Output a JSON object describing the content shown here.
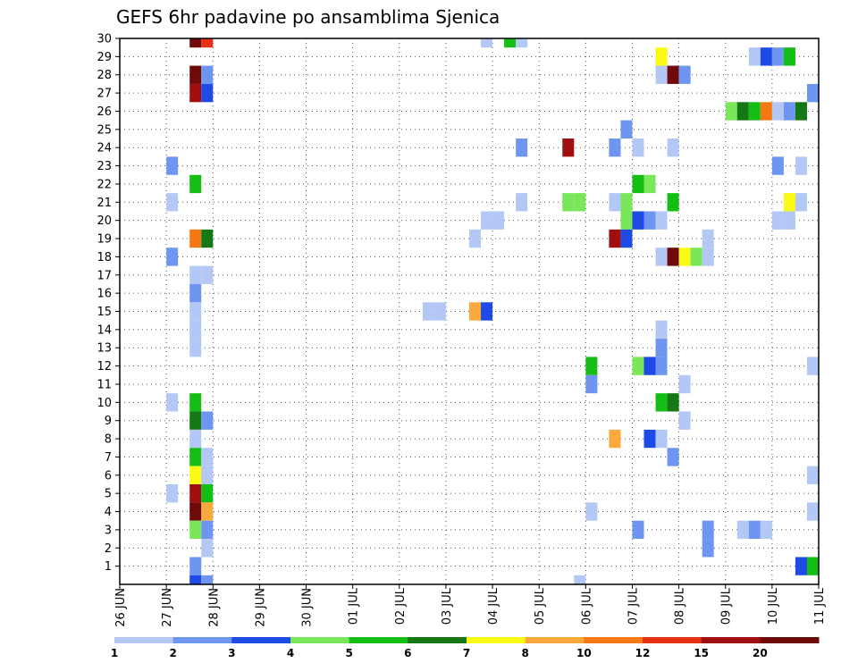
{
  "chart_data": {
    "type": "heatmap",
    "title": "GEFS 6hr padavine po ansamblima Sjenica",
    "y_ticks": [
      "30",
      "29",
      "28",
      "27",
      "26",
      "25",
      "24",
      "23",
      "22",
      "21",
      "20",
      "19",
      "18",
      "17",
      "16",
      "15",
      "14",
      "13",
      "12",
      "11",
      "10",
      "9",
      "8",
      "7",
      "6",
      "5",
      "4",
      "3",
      "2",
      "1"
    ],
    "y_range": [
      0,
      30
    ],
    "x_ticks": [
      "26 JUN",
      "27 JUN",
      "28 JUN",
      "29 JUN",
      "30 JUN",
      "01 JUL",
      "02 JUL",
      "03 JUL",
      "04 JUL",
      "05 JUL",
      "06 JUL",
      "07 JUL",
      "08 JUL",
      "09 JUL",
      "10 JUL",
      "11 JUL"
    ],
    "x_range_days": [
      0,
      15
    ],
    "grid": true,
    "levels": [
      "1",
      "2",
      "3",
      "4",
      "5",
      "6",
      "7",
      "8",
      "10",
      "12",
      "15",
      "20"
    ],
    "colors": [
      "#b4c8f5",
      "#6e96f0",
      "#1e4be6",
      "#7ae65a",
      "#14be14",
      "#147814",
      "#fafa14",
      "#faaa3c",
      "#f57814",
      "#e63214",
      "#a00f0f",
      "#6e0a0a"
    ],
    "cells": [
      [
        1.5,
        30,
        11
      ],
      [
        1.75,
        30,
        9
      ],
      [
        7.75,
        30,
        0
      ],
      [
        8.25,
        30,
        4
      ],
      [
        8.5,
        30,
        0
      ],
      [
        11.5,
        29,
        6
      ],
      [
        13.5,
        29,
        0
      ],
      [
        13.75,
        29,
        2
      ],
      [
        14.0,
        29,
        1
      ],
      [
        14.25,
        29,
        4
      ],
      [
        1.5,
        28,
        11
      ],
      [
        1.75,
        28,
        1
      ],
      [
        11.5,
        28,
        0
      ],
      [
        11.75,
        28,
        11
      ],
      [
        12.0,
        28,
        1
      ],
      [
        1.5,
        27,
        10
      ],
      [
        1.75,
        27,
        2
      ],
      [
        14.75,
        27,
        1
      ],
      [
        13.0,
        26,
        3
      ],
      [
        13.25,
        26,
        5
      ],
      [
        13.5,
        26,
        4
      ],
      [
        13.75,
        26,
        8
      ],
      [
        14.0,
        26,
        0
      ],
      [
        14.25,
        26,
        1
      ],
      [
        14.5,
        26,
        5
      ],
      [
        10.75,
        25,
        1
      ],
      [
        8.5,
        24,
        1
      ],
      [
        9.5,
        24,
        10
      ],
      [
        10.5,
        24,
        1
      ],
      [
        11.0,
        24,
        0
      ],
      [
        11.75,
        24,
        0
      ],
      [
        1.0,
        23,
        1
      ],
      [
        14.0,
        23,
        1
      ],
      [
        14.5,
        23,
        0
      ],
      [
        1.5,
        22,
        4
      ],
      [
        11.0,
        22,
        4
      ],
      [
        11.25,
        22,
        3
      ],
      [
        1.0,
        21,
        0
      ],
      [
        8.5,
        21,
        0
      ],
      [
        9.5,
        21,
        3
      ],
      [
        9.75,
        21,
        3
      ],
      [
        10.5,
        21,
        0
      ],
      [
        10.75,
        21,
        3
      ],
      [
        11.75,
        21,
        4
      ],
      [
        14.25,
        21,
        6
      ],
      [
        14.5,
        21,
        0
      ],
      [
        7.75,
        20,
        0
      ],
      [
        8.0,
        20,
        0
      ],
      [
        10.75,
        20,
        3
      ],
      [
        11.0,
        20,
        2
      ],
      [
        11.25,
        20,
        1
      ],
      [
        11.5,
        20,
        0
      ],
      [
        14.0,
        20,
        0
      ],
      [
        14.25,
        20,
        0
      ],
      [
        1.5,
        19,
        8
      ],
      [
        1.75,
        19,
        5
      ],
      [
        7.5,
        19,
        0
      ],
      [
        10.5,
        19,
        10
      ],
      [
        10.75,
        19,
        2
      ],
      [
        12.5,
        19,
        0
      ],
      [
        1.0,
        18,
        1
      ],
      [
        11.5,
        18,
        0
      ],
      [
        11.75,
        18,
        11
      ],
      [
        12.0,
        18,
        6
      ],
      [
        12.25,
        18,
        3
      ],
      [
        12.5,
        18,
        0
      ],
      [
        1.5,
        17,
        0
      ],
      [
        1.75,
        17,
        0
      ],
      [
        1.5,
        16,
        1
      ],
      [
        1.5,
        15,
        0
      ],
      [
        6.5,
        15,
        0
      ],
      [
        6.75,
        15,
        0
      ],
      [
        7.5,
        15,
        7
      ],
      [
        7.75,
        15,
        2
      ],
      [
        1.5,
        14,
        0
      ],
      [
        11.5,
        14,
        0
      ],
      [
        1.5,
        13,
        0
      ],
      [
        11.5,
        13,
        1
      ],
      [
        10.0,
        12,
        4
      ],
      [
        11.0,
        12,
        3
      ],
      [
        11.25,
        12,
        2
      ],
      [
        11.5,
        12,
        1
      ],
      [
        14.75,
        12,
        0
      ],
      [
        10.0,
        11,
        1
      ],
      [
        12.0,
        11,
        0
      ],
      [
        1.0,
        10,
        0
      ],
      [
        1.5,
        10,
        4
      ],
      [
        11.5,
        10,
        4
      ],
      [
        11.75,
        10,
        5
      ],
      [
        1.5,
        9,
        5
      ],
      [
        1.75,
        9,
        1
      ],
      [
        12.0,
        9,
        0
      ],
      [
        1.5,
        8,
        0
      ],
      [
        10.5,
        8,
        7
      ],
      [
        11.25,
        8,
        2
      ],
      [
        11.5,
        8,
        0
      ],
      [
        1.5,
        7,
        4
      ],
      [
        1.75,
        7,
        0
      ],
      [
        11.75,
        7,
        1
      ],
      [
        1.5,
        6,
        6
      ],
      [
        1.75,
        6,
        0
      ],
      [
        14.75,
        6,
        0
      ],
      [
        1.0,
        5,
        0
      ],
      [
        1.5,
        5,
        10
      ],
      [
        1.75,
        5,
        4
      ],
      [
        1.5,
        4,
        11
      ],
      [
        1.75,
        4,
        7
      ],
      [
        10.0,
        4,
        0
      ],
      [
        14.75,
        4,
        0
      ],
      [
        1.5,
        3,
        3
      ],
      [
        1.75,
        3,
        1
      ],
      [
        11.0,
        3,
        1
      ],
      [
        12.5,
        3,
        1
      ],
      [
        13.25,
        3,
        0
      ],
      [
        13.5,
        3,
        1
      ],
      [
        13.75,
        3,
        0
      ],
      [
        1.75,
        2,
        0
      ],
      [
        12.5,
        2,
        1
      ],
      [
        1.5,
        1,
        1
      ],
      [
        14.5,
        1,
        2
      ],
      [
        14.75,
        1,
        4
      ],
      [
        1.5,
        0,
        2
      ],
      [
        1.75,
        0,
        1
      ],
      [
        9.75,
        0,
        0
      ]
    ]
  }
}
